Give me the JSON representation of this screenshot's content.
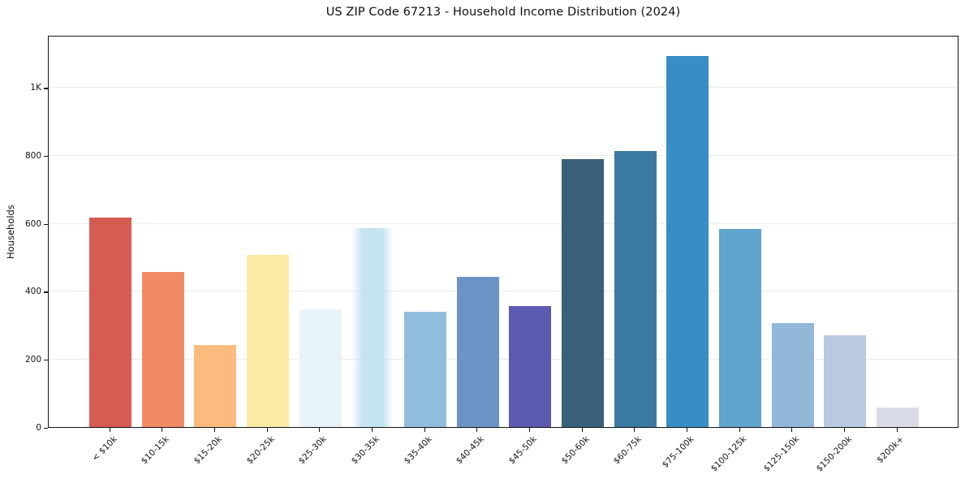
{
  "chart_data": {
    "type": "bar",
    "title": "US ZIP Code 67213 - Household Income Distribution (2024)",
    "xlabel": "",
    "ylabel": "Households",
    "categories": [
      "< $10k",
      "$10-15k",
      "$15-20k",
      "$20-25k",
      "$25-30k",
      "$30-35k",
      "$35-40k",
      "$40-45k",
      "$45-50k",
      "$50-60k",
      "$60-75k",
      "$75-100k",
      "$100-125k",
      "$125-150k",
      "$150-200k",
      "$200k+"
    ],
    "values": [
      618,
      457,
      241,
      507,
      347,
      586,
      339,
      443,
      356,
      790,
      814,
      1093,
      584,
      306,
      270,
      58
    ],
    "bar_colors": [
      "#d65b52",
      "#f18a66",
      "#fcbb7e",
      "#fde9a6",
      "#e8f3f9",
      "#c5e3f0",
      "#90bddc",
      "#6d92c6",
      "#5d5ab1",
      "#38607a",
      "#3a7aa1",
      "#368ec4",
      "#61a4cd",
      "#92b7d9",
      "#b8c9e0",
      "#d9dbe8"
    ],
    "ylim": [
      0,
      1155
    ],
    "yticks": [
      {
        "value": 0,
        "label": "0"
      },
      {
        "value": 200,
        "label": "200"
      },
      {
        "value": 400,
        "label": "400"
      },
      {
        "value": 600,
        "label": "600"
      },
      {
        "value": 800,
        "label": "800"
      },
      {
        "value": 1000,
        "label": "1K"
      }
    ],
    "grid": "horizontal",
    "legend": "none",
    "colors": {
      "background": "#ffffff",
      "spine": "#141414",
      "gridline": "#eaeaea",
      "text": "#0f0f0f"
    }
  }
}
